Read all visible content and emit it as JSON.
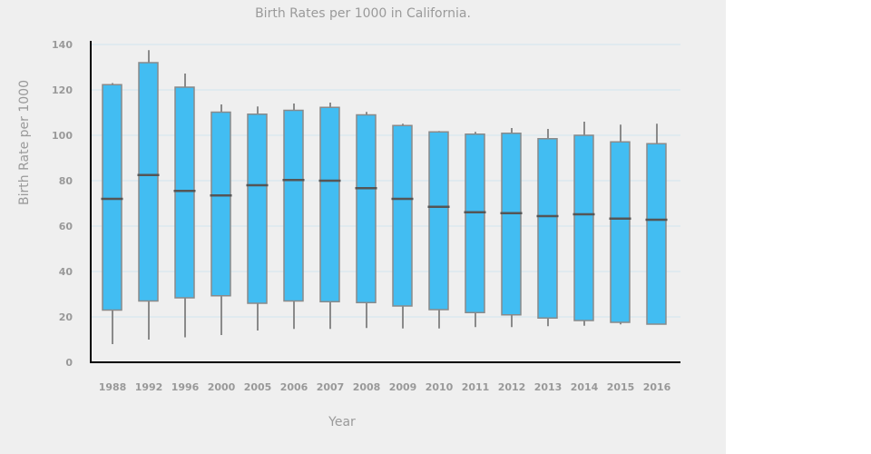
{
  "chart_data": {
    "type": "boxplot",
    "title": "Birth Rates per 1000 in California.",
    "xlabel": "Year",
    "ylabel": "Birth Rate per 1000",
    "ylim": [
      0,
      140
    ],
    "yticks": [
      "0",
      "20",
      "40",
      "60",
      "80",
      "100",
      "120",
      "140"
    ],
    "grid": true,
    "categories": [
      "1988",
      "1992",
      "1996",
      "2000",
      "2005",
      "2006",
      "2007",
      "2008",
      "2009",
      "2010",
      "2011",
      "2012",
      "2013",
      "2014",
      "2015",
      "2016"
    ],
    "series": [
      {
        "name": "Birth Rate",
        "whisker_low": [
          8,
          10,
          11,
          12,
          14,
          14.7,
          14.7,
          15.1,
          14.9,
          14.9,
          15.5,
          15.5,
          15.9,
          16.1,
          16.7,
          16.8
        ],
        "q1": [
          23,
          27,
          28.4,
          29.3,
          26,
          27,
          26.7,
          26.3,
          24.8,
          23.2,
          21.9,
          20.9,
          19.5,
          18.4,
          17.6,
          16.8
        ],
        "median": [
          72,
          82.5,
          75.5,
          73.5,
          78,
          80.3,
          80,
          76.7,
          72,
          68.5,
          66.1,
          65.7,
          64.4,
          65.2,
          63.3,
          62.8
        ],
        "q3": [
          122.3,
          132,
          121.2,
          110.2,
          109.3,
          111,
          112.3,
          109,
          104.3,
          101.5,
          100.5,
          100.9,
          98.5,
          100,
          97.1,
          96.3
        ],
        "whisker_high": [
          123,
          137.5,
          127.2,
          113.6,
          112.7,
          114,
          114.4,
          110.3,
          105.1,
          101.9,
          101.5,
          103.2,
          102.8,
          106,
          104.7,
          105.1
        ]
      }
    ],
    "colors": {
      "box_fill": "#42bdf2",
      "box_stroke": "#8a8a8a",
      "median": "#555555",
      "whisker": "#8a8a8a",
      "grid": "#dbe8ef",
      "axis": "#000000",
      "text": "#999999",
      "background": "#efefef"
    }
  }
}
